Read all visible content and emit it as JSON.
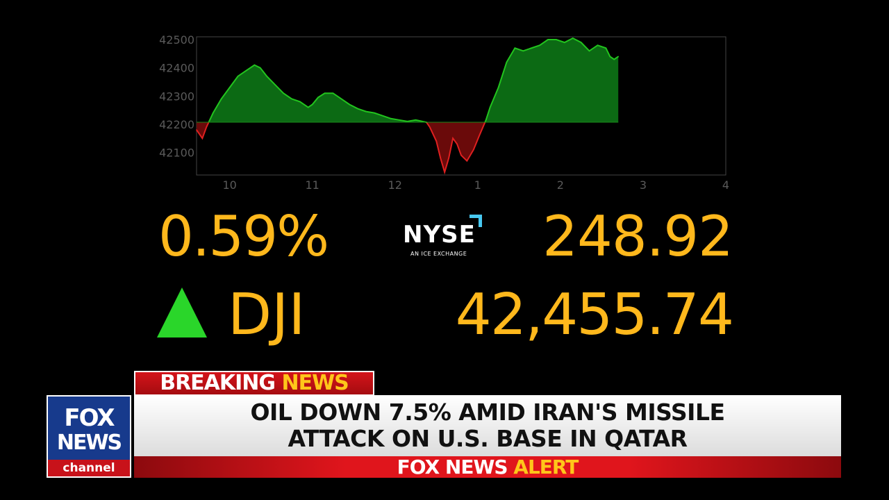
{
  "chart_data": {
    "type": "area",
    "baseline": 42207,
    "ylim": [
      42020,
      42510
    ],
    "xlim": [
      9.6,
      16
    ],
    "yticks": [
      42500,
      42400,
      42300,
      42200,
      42100
    ],
    "xticks": [
      {
        "value": 10,
        "label": "10"
      },
      {
        "value": 11,
        "label": "11"
      },
      {
        "value": 12,
        "label": "12"
      },
      {
        "value": 13,
        "label": "1"
      },
      {
        "value": 14,
        "label": "2"
      },
      {
        "value": 15,
        "label": "3"
      },
      {
        "value": 16,
        "label": "4"
      }
    ],
    "x": [
      9.6,
      9.67,
      9.72,
      9.8,
      9.9,
      10.0,
      10.1,
      10.2,
      10.3,
      10.37,
      10.45,
      10.55,
      10.65,
      10.75,
      10.85,
      10.95,
      11.0,
      11.07,
      11.15,
      11.25,
      11.35,
      11.45,
      11.55,
      11.65,
      11.75,
      11.85,
      11.95,
      12.05,
      12.15,
      12.25,
      12.38,
      12.42,
      12.5,
      12.55,
      12.6,
      12.65,
      12.7,
      12.75,
      12.8,
      12.87,
      12.95,
      13.02,
      13.1,
      13.15,
      13.25,
      13.35,
      13.45,
      13.55,
      13.65,
      13.75,
      13.85,
      13.95,
      14.05,
      14.15,
      14.25,
      14.35,
      14.45,
      14.55,
      14.6,
      14.65,
      14.7
    ],
    "values": [
      42180,
      42150,
      42190,
      42240,
      42290,
      42330,
      42370,
      42390,
      42410,
      42400,
      42370,
      42340,
      42310,
      42290,
      42280,
      42260,
      42270,
      42295,
      42310,
      42310,
      42290,
      42270,
      42255,
      42245,
      42240,
      42230,
      42220,
      42215,
      42210,
      42215,
      42207,
      42190,
      42140,
      42080,
      42030,
      42080,
      42150,
      42130,
      42090,
      42070,
      42110,
      42160,
      42215,
      42260,
      42330,
      42420,
      42470,
      42460,
      42470,
      42480,
      42500,
      42500,
      42490,
      42505,
      42490,
      42460,
      42480,
      42470,
      42440,
      42430,
      42440
    ]
  },
  "ticker": {
    "percent_change": "0.59%",
    "price": "248.92",
    "symbol": "DJI",
    "index_value": "42,455.74",
    "direction": "up"
  },
  "exchange": {
    "name": "NYSE",
    "tagline": "AN ICE EXCHANGE",
    "accent": "#48c8f0"
  },
  "colors": {
    "up_fill": "#0c6a14",
    "up_line": "#22c41e",
    "down_fill": "#6a0a0a",
    "down_line": "#e02020",
    "ticker_text": "#ffb81c",
    "arrow": "#2ad62a"
  },
  "lower_third": {
    "banner": {
      "word1": "BREAKING",
      "word2": "NEWS"
    },
    "headline_line1": "OIL DOWN 7.5% AMID IRAN'S MISSILE",
    "headline_line2": "ATTACK ON U.S. BASE IN QATAR",
    "alert": {
      "word1": "FOX NEWS",
      "word2": "ALERT"
    },
    "logo": {
      "line1": "FOX",
      "line2": "NEWS",
      "line3": "channel"
    }
  }
}
